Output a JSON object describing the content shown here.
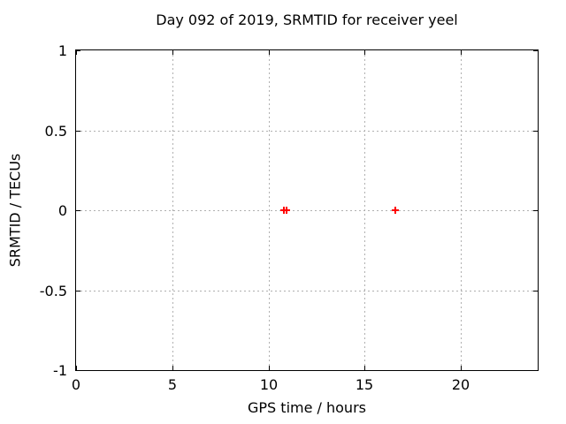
{
  "title": "Day 092 of 2019, SRMTID for receiver yeel",
  "colors": {
    "background": "#ffffff",
    "foreground": "#000000",
    "grid": "#b0b0b0",
    "marker": "#ff0000"
  },
  "chart_data": {
    "type": "scatter",
    "title": "Day 092 of 2019, SRMTID for receiver yeel",
    "xlabel": "GPS time / hours",
    "ylabel": "SRMTID / TECUs",
    "xlim": [
      0,
      24
    ],
    "ylim": [
      -1,
      1
    ],
    "xticks": [
      0,
      5,
      10,
      15,
      20
    ],
    "yticks": [
      1,
      0.5,
      0,
      -0.5,
      -1
    ],
    "grid": true,
    "legend": "none",
    "series": [
      {
        "name": "SRMTID",
        "marker": "plus",
        "color": "#ff0000",
        "points": [
          {
            "x": 10.8,
            "y": 0
          },
          {
            "x": 10.95,
            "y": 0
          },
          {
            "x": 16.6,
            "y": 0
          }
        ]
      }
    ]
  }
}
